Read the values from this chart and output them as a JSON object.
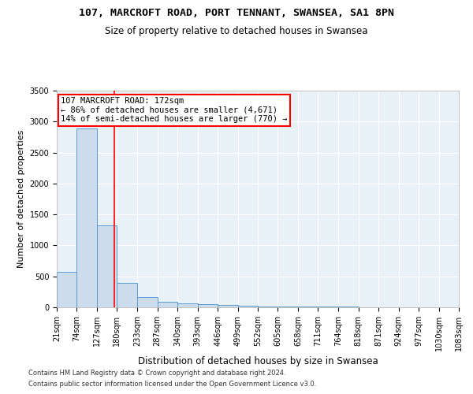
{
  "title1": "107, MARCROFT ROAD, PORT TENNANT, SWANSEA, SA1 8PN",
  "title2": "Size of property relative to detached houses in Swansea",
  "xlabel": "Distribution of detached houses by size in Swansea",
  "ylabel": "Number of detached properties",
  "footnote1": "Contains HM Land Registry data © Crown copyright and database right 2024.",
  "footnote2": "Contains public sector information licensed under the Open Government Licence v3.0.",
  "bin_edges": [
    21,
    74,
    127,
    180,
    233,
    287,
    340,
    393,
    446,
    499,
    552,
    605,
    658,
    711,
    764,
    818,
    871,
    924,
    977,
    1030,
    1083
  ],
  "bar_heights": [
    570,
    2890,
    1320,
    400,
    160,
    95,
    60,
    45,
    32,
    22,
    18,
    14,
    11,
    9,
    7,
    6,
    5,
    4,
    3,
    2
  ],
  "bar_color": "#ccdcec",
  "bar_edge_color": "#5b9bd5",
  "property_size": 172,
  "annotation_line1": "107 MARCROFT ROAD: 172sqm",
  "annotation_line2": "← 86% of detached houses are smaller (4,671)",
  "annotation_line3": "14% of semi-detached houses are larger (770) →",
  "annotation_box_color": "white",
  "annotation_border_color": "red",
  "vline_color": "red",
  "ylim": [
    0,
    3500
  ],
  "yticks": [
    0,
    500,
    1000,
    1500,
    2000,
    2500,
    3000,
    3500
  ],
  "background_color": "#e8f0f8",
  "grid_color": "white",
  "title1_fontsize": 9.5,
  "title2_fontsize": 8.5,
  "xlabel_fontsize": 8.5,
  "ylabel_fontsize": 8,
  "tick_fontsize": 7,
  "annotation_fontsize": 7.5,
  "footnote_fontsize": 6
}
